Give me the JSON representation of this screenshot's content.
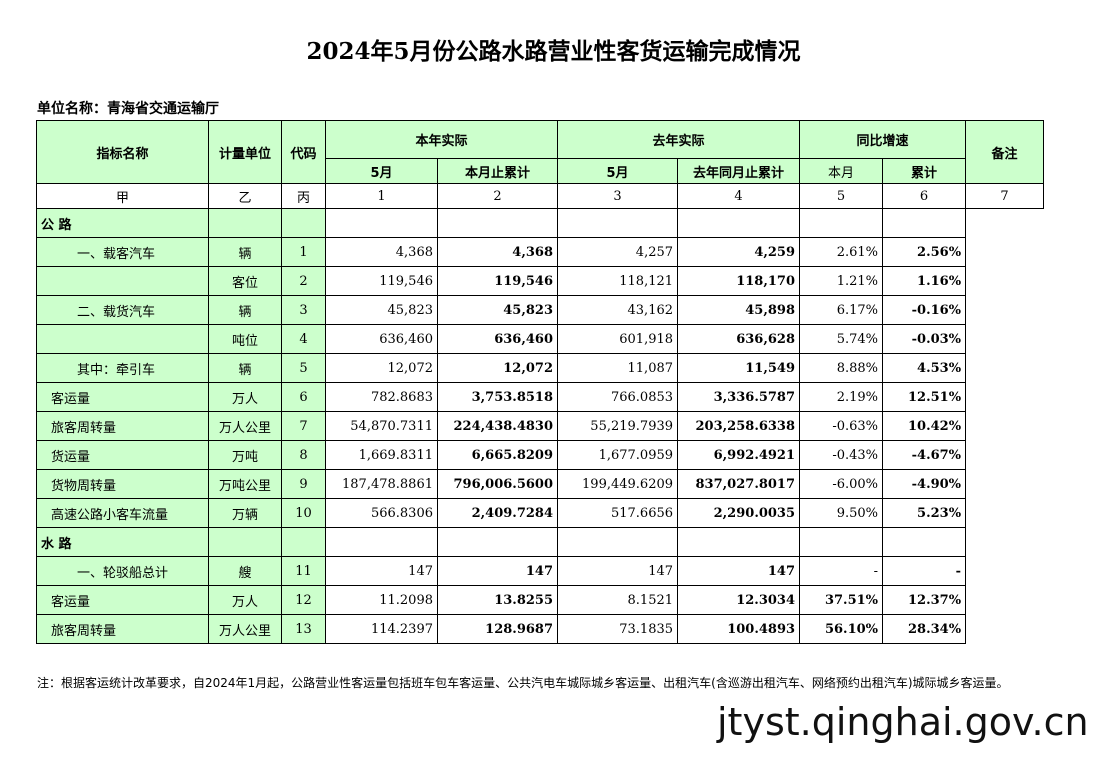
{
  "title": "2024年5月份公路水路营业性客货运输完成情况",
  "unit_label": "单位名称：青海省交通运输厅",
  "headers": {
    "indicator": "指标名称",
    "unit": "计量单位",
    "code": "代码",
    "this_year": "本年实际",
    "last_year": "去年实际",
    "yoy": "同比增速",
    "remark": "备注",
    "ty_month": "5月",
    "ty_cum": "本月止累计",
    "ly_month": "5月",
    "ly_cum": "去年同月止累计",
    "yoy_month": "本月",
    "yoy_cum": "累计"
  },
  "index_row": [
    "甲",
    "乙",
    "丙",
    "1",
    "2",
    "3",
    "4",
    "5",
    "6",
    "7"
  ],
  "sections": {
    "road": "公  路",
    "water": "水  路"
  },
  "rows": [
    {
      "name": "一、载客汽车",
      "unit": "辆",
      "code": "1",
      "v1": "4,368",
      "v2": "4,368",
      "v3": "4,257",
      "v4": "4,259",
      "v5": "2.61%",
      "v6": "2.56%"
    },
    {
      "name": "",
      "unit": "客位",
      "code": "2",
      "v1": "119,546",
      "v2": "119,546",
      "v3": "118,121",
      "v4": "118,170",
      "v5": "1.21%",
      "v6": "1.16%"
    },
    {
      "name": "二、载货汽车",
      "unit": "辆",
      "code": "3",
      "v1": "45,823",
      "v2": "45,823",
      "v3": "43,162",
      "v4": "45,898",
      "v5": "6.17%",
      "v6": "-0.16%"
    },
    {
      "name": "",
      "unit": "吨位",
      "code": "4",
      "v1": "636,460",
      "v2": "636,460",
      "v3": "601,918",
      "v4": "636,628",
      "v5": "5.74%",
      "v6": "-0.03%"
    },
    {
      "name": "其中：牵引车",
      "unit": "辆",
      "code": "5",
      "v1": "12,072",
      "v2": "12,072",
      "v3": "11,087",
      "v4": "11,549",
      "v5": "8.88%",
      "v6": "4.53%"
    },
    {
      "name": "客运量",
      "unit": "万人",
      "code": "6",
      "v1": "782.8683",
      "v2": "3,753.8518",
      "v3": "766.0853",
      "v4": "3,336.5787",
      "v5": "2.19%",
      "v6": "12.51%"
    },
    {
      "name": "旅客周转量",
      "unit": "万人公里",
      "code": "7",
      "v1": "54,870.7311",
      "v2": "224,438.4830",
      "v3": "55,219.7939",
      "v4": "203,258.6338",
      "v5": "-0.63%",
      "v6": "10.42%"
    },
    {
      "name": "货运量",
      "unit": "万吨",
      "code": "8",
      "v1": "1,669.8311",
      "v2": "6,665.8209",
      "v3": "1,677.0959",
      "v4": "6,992.4921",
      "v5": "-0.43%",
      "v6": "-4.67%"
    },
    {
      "name": "货物周转量",
      "unit": "万吨公里",
      "code": "9",
      "v1": "187,478.8861",
      "v2": "796,006.5600",
      "v3": "199,449.6209",
      "v4": "837,027.8017",
      "v5": "-6.00%",
      "v6": "-4.90%"
    },
    {
      "name": "高速公路小客车流量",
      "unit": "万辆",
      "code": "10",
      "v1": "566.8306",
      "v2": "2,409.7284",
      "v3": "517.6656",
      "v4": "2,290.0035",
      "v5": "9.50%",
      "v6": "5.23%"
    },
    {
      "name": "一、轮驳船总计",
      "unit": "艘",
      "code": "11",
      "v1": "147",
      "v2": "147",
      "v3": "147",
      "v4": "147",
      "v5": "-",
      "v6": "-"
    },
    {
      "name": "客运量",
      "unit": "万人",
      "code": "12",
      "v1": "11.2098",
      "v2": "13.8255",
      "v3": "8.1521",
      "v4": "12.3034",
      "v5": "37.51%",
      "v6": "12.37%"
    },
    {
      "name": "旅客周转量",
      "unit": "万人公里",
      "code": "13",
      "v1": "114.2397",
      "v2": "128.9687",
      "v3": "73.1835",
      "v4": "100.4893",
      "v5": "56.10%",
      "v6": "28.34%"
    }
  ],
  "note": "注：根据客运统计改革要求，自2024年1月起，公路营业性客运量包括班车包车客运量、公共汽电车城际城乡客运量、出租汽车(含巡游出租汽车、网络预约出租汽车)城际城乡客运量。",
  "watermark": "jtyst.qinghai.gov.cn"
}
